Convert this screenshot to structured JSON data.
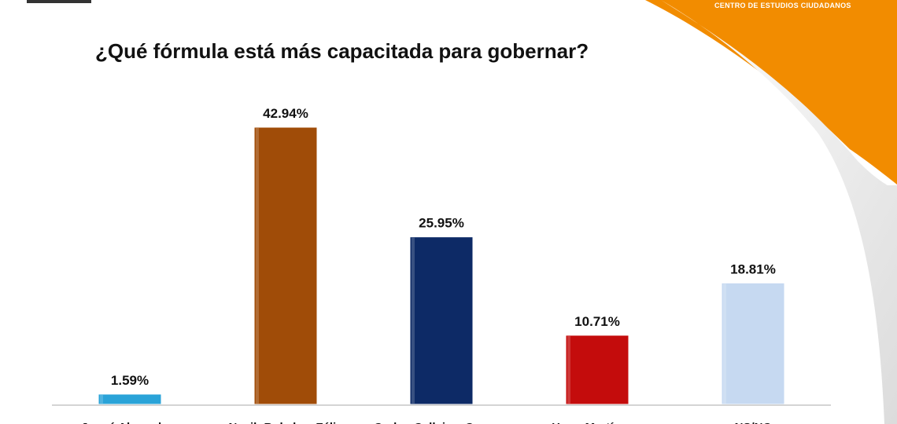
{
  "brand": {
    "name": "CENTRO DE ESTUDIOS CIUDADANOS",
    "accent": "#f28c00"
  },
  "chart_data": {
    "type": "bar",
    "title": "¿Qué fórmula está más capacitada para gobernar?",
    "categories": [
      "Josué Alvarado y",
      "Nayib Bukele y Félix",
      "Carlos Calleja y Carmen",
      "Hugo Martínez y",
      "NS/NC"
    ],
    "values": [
      1.59,
      42.94,
      25.95,
      10.71,
      18.81
    ],
    "value_labels": [
      "1.59%",
      "42.94%",
      "25.95%",
      "10.71%",
      "18.81%"
    ],
    "colors": [
      "#2aa3d8",
      "#a04c08",
      "#0d2a66",
      "#c40c0c",
      "#c6d9f1"
    ],
    "ylim": [
      0,
      45
    ],
    "grid": false,
    "legend": "none"
  }
}
